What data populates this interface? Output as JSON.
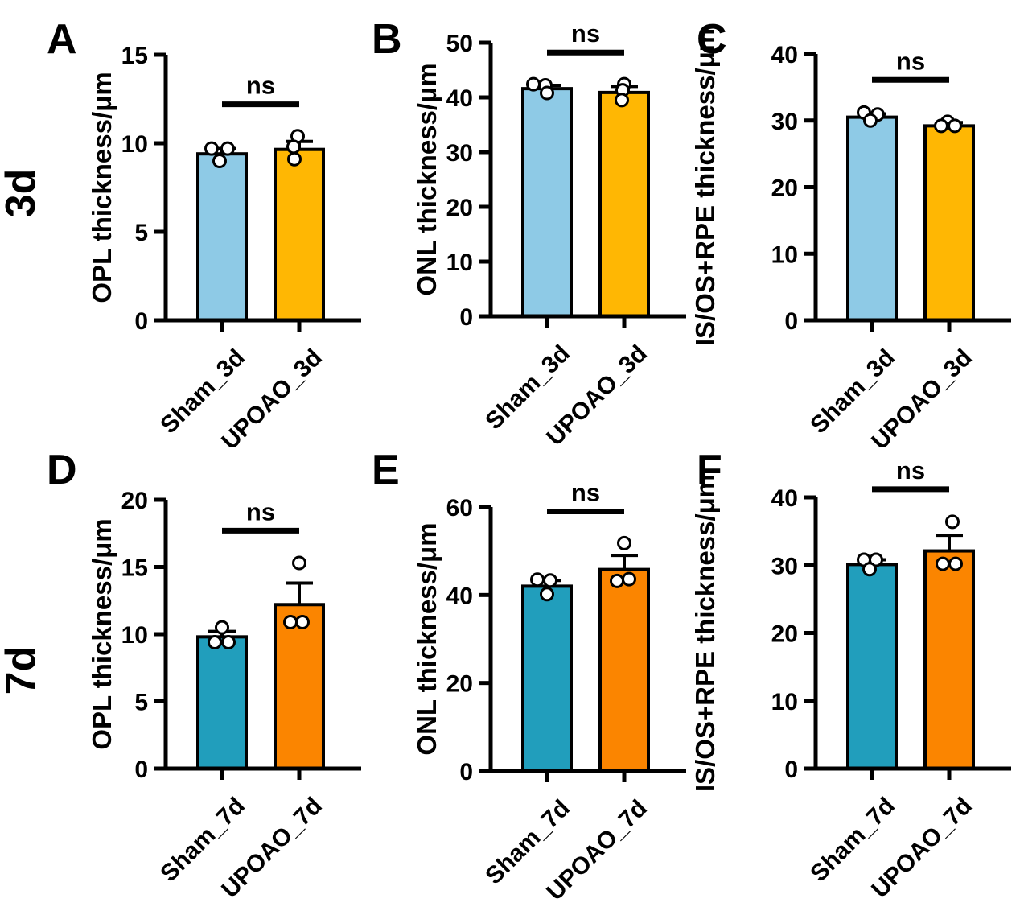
{
  "figure": {
    "row_labels": [
      "3d",
      "7d"
    ],
    "significance_label": "ns",
    "colors": {
      "sham_3d": "#8ECAE6",
      "upoao_3d": "#FFB703",
      "sham_7d": "#219EBC",
      "upoao_7d": "#FB8500",
      "axis": "#000000",
      "point_fill": "#FFFFFF"
    }
  },
  "chart_data": [
    {
      "type": "bar",
      "panel": "A",
      "row": "3d",
      "title": "",
      "xlabel": "",
      "ylabel": "OPL thickness/μm",
      "ylim": [
        0,
        15
      ],
      "yticks": [
        0,
        5,
        10,
        15
      ],
      "grid": false,
      "categories": [
        "Sham_3d",
        "UPOAO_3d"
      ],
      "series": [
        {
          "name": "Sham_3d",
          "color": "#8ECAE6",
          "mean": 9.4,
          "sem_top": 9.7,
          "points": [
            9.7,
            9.7,
            9.0
          ],
          "points_dx": [
            -13,
            7,
            -3
          ]
        },
        {
          "name": "UPOAO_3d",
          "color": "#FFB703",
          "mean": 9.65,
          "sem_top": 10.1,
          "points": [
            10.4,
            9.8,
            9.1
          ],
          "points_dx": [
            -2,
            -7,
            -6
          ]
        }
      ],
      "significance": {
        "label": "ns",
        "bar_y": 12.2
      }
    },
    {
      "type": "bar",
      "panel": "B",
      "row": "3d",
      "title": "",
      "xlabel": "",
      "ylabel": "ONL thickness/μm",
      "ylim": [
        0,
        50
      ],
      "yticks": [
        0,
        10,
        20,
        30,
        40,
        50
      ],
      "grid": false,
      "categories": [
        "Sham_3d",
        "UPOAO_3d"
      ],
      "series": [
        {
          "name": "Sham_3d",
          "color": "#8ECAE6",
          "mean": 41.6,
          "sem_top": 42.2,
          "points": [
            42.4,
            42.2,
            40.8
          ],
          "points_dx": [
            -17,
            -2,
            0
          ]
        },
        {
          "name": "UPOAO_3d",
          "color": "#FFB703",
          "mean": 40.9,
          "sem_top": 42.0,
          "points": [
            42.4,
            41.3,
            39.5
          ],
          "points_dx": [
            0,
            -2,
            -3
          ]
        }
      ],
      "significance": {
        "label": "ns",
        "bar_y": 48.2
      }
    },
    {
      "type": "bar",
      "panel": "C",
      "row": "3d",
      "title": "",
      "xlabel": "",
      "ylabel": "IS/OS+RPE thickness/μm",
      "ylim": [
        0,
        40
      ],
      "yticks": [
        0,
        10,
        20,
        30,
        40
      ],
      "grid": false,
      "categories": [
        "Sham_3d",
        "UPOAO_3d"
      ],
      "series": [
        {
          "name": "Sham_3d",
          "color": "#8ECAE6",
          "mean": 30.5,
          "sem_top": 31.0,
          "points": [
            31.2,
            30.9,
            30.0
          ],
          "points_dx": [
            -10,
            7,
            -2
          ]
        },
        {
          "name": "UPOAO_3d",
          "color": "#FFB703",
          "mean": 29.2,
          "sem_top": 29.7,
          "points": [
            29.8,
            29.2,
            29.2
          ],
          "points_dx": [
            -2,
            -10,
            7
          ]
        }
      ],
      "significance": {
        "label": "ns",
        "bar_y": 36.1
      }
    },
    {
      "type": "bar",
      "panel": "D",
      "row": "7d",
      "title": "",
      "xlabel": "",
      "ylabel": "OPL thickness/μm",
      "ylim": [
        0,
        20
      ],
      "yticks": [
        0,
        5,
        10,
        15,
        20
      ],
      "grid": false,
      "categories": [
        "Sham_7d",
        "UPOAO_7d"
      ],
      "series": [
        {
          "name": "Sham_7d",
          "color": "#219EBC",
          "mean": 9.8,
          "sem_top": 10.2,
          "points": [
            10.5,
            9.4,
            9.4
          ],
          "points_dx": [
            0,
            -9,
            8
          ]
        },
        {
          "name": "UPOAO_7d",
          "color": "#FB8500",
          "mean": 12.2,
          "sem_top": 13.8,
          "points": [
            15.3,
            10.9,
            10.9
          ],
          "points_dx": [
            0,
            -11,
            4
          ]
        }
      ],
      "significance": {
        "label": "ns",
        "bar_y": 17.7
      }
    },
    {
      "type": "bar",
      "panel": "E",
      "row": "7d",
      "title": "",
      "xlabel": "",
      "ylabel": "ONL thickness/μm",
      "ylim": [
        0,
        60
      ],
      "yticks": [
        0,
        20,
        40,
        60
      ],
      "grid": false,
      "categories": [
        "Sham_7d",
        "UPOAO_7d"
      ],
      "series": [
        {
          "name": "Sham_7d",
          "color": "#219EBC",
          "mean": 42.0,
          "sem_top": 43.3,
          "points": [
            43.5,
            43.3,
            40.2
          ],
          "points_dx": [
            -12,
            4,
            0
          ]
        },
        {
          "name": "UPOAO_7d",
          "color": "#FB8500",
          "mean": 45.8,
          "sem_top": 49.0,
          "points": [
            51.8,
            43.2,
            43.6
          ],
          "points_dx": [
            0,
            -9,
            6
          ]
        }
      ],
      "significance": {
        "label": "ns",
        "bar_y": 59.0
      }
    },
    {
      "type": "bar",
      "panel": "F",
      "row": "7d",
      "title": "",
      "xlabel": "",
      "ylabel": "IS/OS+RPE thickness/μm",
      "ylim": [
        0,
        40
      ],
      "yticks": [
        0,
        10,
        20,
        30,
        40
      ],
      "grid": false,
      "categories": [
        "Sham_7d",
        "UPOAO_7d"
      ],
      "series": [
        {
          "name": "Sham_7d",
          "color": "#219EBC",
          "mean": 30.1,
          "sem_top": 30.8,
          "points": [
            30.8,
            30.8,
            29.4
          ],
          "points_dx": [
            -10,
            5,
            -3
          ]
        },
        {
          "name": "UPOAO_7d",
          "color": "#FB8500",
          "mean": 32.1,
          "sem_top": 34.4,
          "points": [
            36.4,
            30.2,
            30.2
          ],
          "points_dx": [
            4,
            -8,
            8
          ]
        }
      ],
      "significance": {
        "label": "ns",
        "bar_y": 41.2
      }
    }
  ]
}
